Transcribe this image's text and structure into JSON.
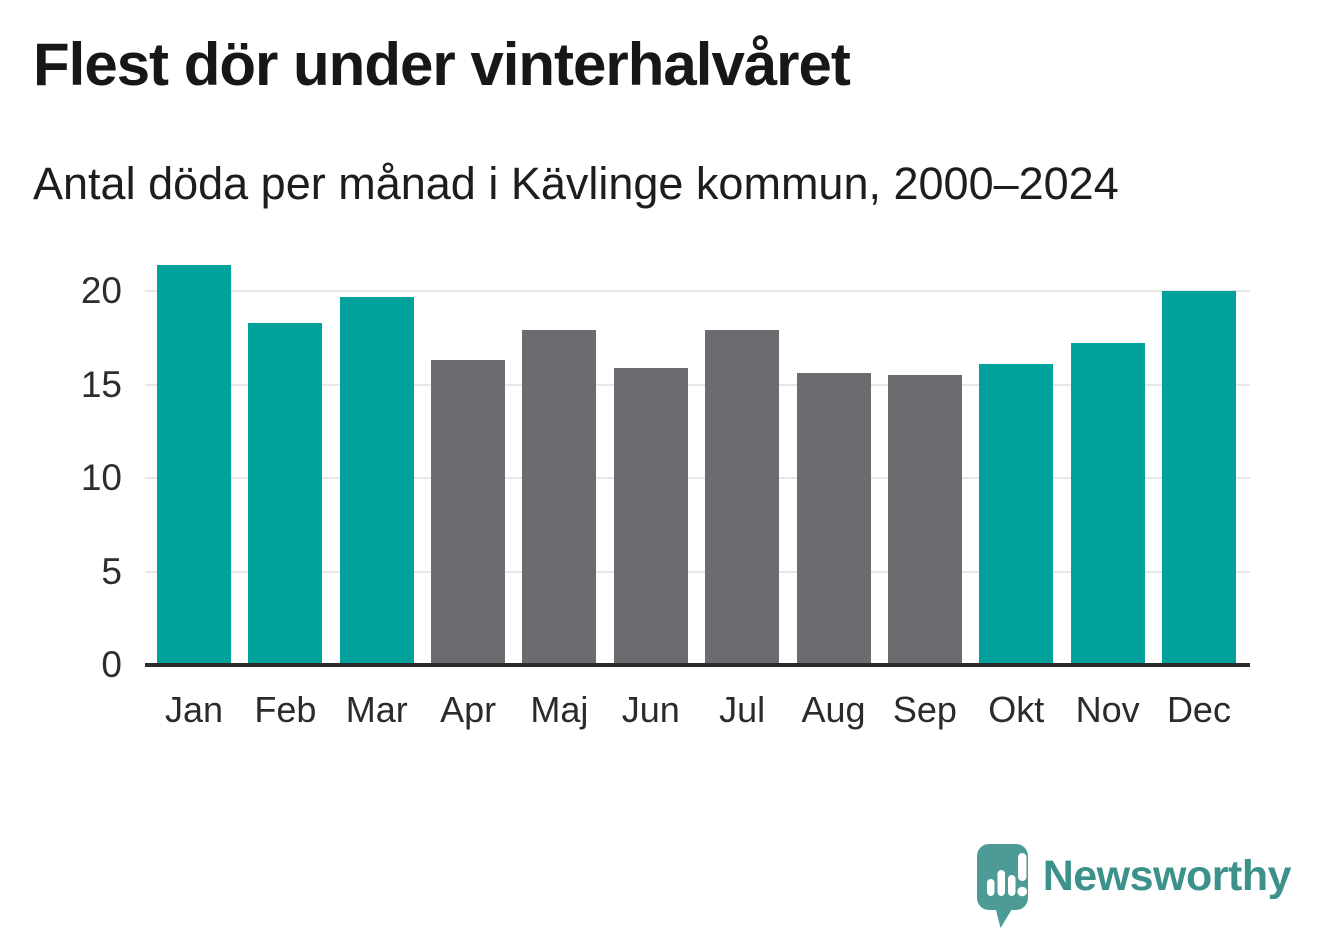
{
  "header": {
    "title": "Flest dör under vinterhalvåret",
    "subtitle": "Antal döda per månad i Kävlinge kommun, 2000–2024"
  },
  "chart_data": {
    "type": "bar",
    "title": "Flest dör under vinterhalvåret",
    "subtitle": "Antal döda per månad i Kävlinge kommun, 2000–2024",
    "categories": [
      "Jan",
      "Feb",
      "Mar",
      "Apr",
      "Maj",
      "Jun",
      "Jul",
      "Aug",
      "Sep",
      "Okt",
      "Nov",
      "Dec"
    ],
    "values": [
      21.4,
      18.3,
      19.7,
      16.3,
      17.9,
      15.9,
      17.9,
      15.6,
      15.5,
      16.1,
      17.2,
      20.0
    ],
    "highlighted": [
      true,
      true,
      true,
      false,
      false,
      false,
      false,
      false,
      false,
      true,
      true,
      true
    ],
    "xlabel": "",
    "ylabel": "",
    "ylim": [
      0,
      21.93
    ],
    "yticks": [
      0,
      5,
      10,
      15,
      20
    ],
    "grid": true,
    "legend_position": "none",
    "colors": {
      "highlight": "#00a29b",
      "default": "#6b6b70",
      "gridline": "#e7e7e7",
      "axis": "#2b2b2b"
    }
  },
  "footer": {
    "brand": "Newsworthy",
    "logo_icon": "newsworthy-speech-bubble-barchart-icon",
    "brand_color": "#3c918b",
    "logo_fill": "#4c9c95"
  }
}
